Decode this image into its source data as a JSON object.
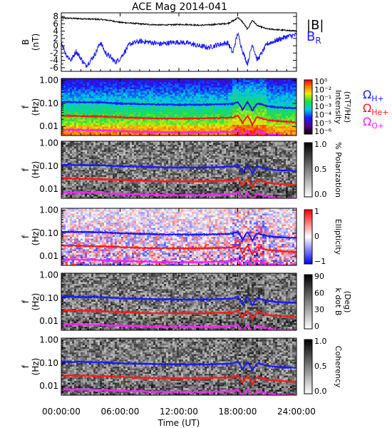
{
  "title": "ACE Mag 2014-041",
  "colors": {
    "B_total": "#000000",
    "B_R": "#1a1aff",
    "omega_H": "#1a1aff",
    "omega_He": "#ff1a1a",
    "omega_O": "#ff22ff"
  },
  "chart_data": {
    "type": "line",
    "title": "ACE Mag 2014-041",
    "xlabel": "Time (UT)",
    "xlim": [
      0,
      24
    ],
    "xtick_labels": [
      "00:00:00",
      "06:00:00",
      "12:00:00",
      "18:00:00",
      "24:00:00"
    ],
    "panels": [
      {
        "id": "bfield",
        "ylabel": "B",
        "yunit": "(nT)",
        "ylim": [
          -7,
          9
        ],
        "yticks": [
          "8",
          "6",
          "4",
          "2",
          "0",
          "-2",
          "-4",
          "-6"
        ],
        "legend": [
          "|B|",
          "B_R"
        ],
        "legend_display": {
          "b_total": "|B|",
          "b_r_main": "B",
          "b_r_sub": "R"
        },
        "series": [
          {
            "name": "|B|",
            "color": "#000000",
            "x": [
              0,
              1,
              2,
              3,
              4,
              5,
              6,
              7,
              8,
              9,
              10,
              11,
              12,
              13,
              14,
              15,
              16,
              17,
              17.8,
              18,
              18.5,
              19,
              19.5,
              20,
              21,
              22,
              23,
              24
            ],
            "y": [
              7.6,
              7.5,
              7.4,
              7.3,
              7.2,
              6.9,
              6.4,
              6.2,
              6.0,
              5.8,
              5.7,
              5.7,
              5.8,
              5.8,
              5.6,
              5.7,
              5.9,
              6.1,
              7.2,
              7.8,
              6.5,
              4.5,
              7.0,
              5.5,
              4.6,
              4.4,
              4.2,
              4.0
            ]
          },
          {
            "name": "B_R",
            "color": "#1a1aff",
            "x": [
              0,
              0.5,
              1,
              1.5,
              2,
              2.5,
              3,
              3.5,
              4,
              4.5,
              5,
              5.5,
              6,
              7,
              8,
              9,
              10,
              11,
              12,
              13,
              14,
              15,
              16,
              17,
              17.5,
              18,
              18.5,
              19,
              19.5,
              20,
              21,
              22,
              23,
              24
            ],
            "y": [
              1.0,
              -2.5,
              -4.0,
              -1.5,
              -3.5,
              -5.5,
              -4.0,
              -2.0,
              1.0,
              -2.0,
              -3.0,
              -4.5,
              -3.5,
              0.5,
              1.2,
              1.0,
              0.5,
              0.8,
              1.0,
              0.7,
              0.0,
              -0.5,
              0.3,
              0.8,
              -2.0,
              3.5,
              -1.5,
              -5.0,
              0.5,
              -4.0,
              0.5,
              1.5,
              2.5,
              3.0
            ]
          }
        ]
      },
      {
        "id": "intensity",
        "ylabel": "f",
        "yunit": "(Hz)",
        "yscale": "log",
        "ylim": [
          0.004,
          1.2
        ],
        "yticks": [
          "1.00",
          "0.10",
          "0.01"
        ],
        "colorbar_label": "Intensity",
        "colorbar_unit": "(nT²/Hz)",
        "colorbar_ticks": [
          "10⁰",
          "10⁻²",
          "10⁻¹",
          "10⁻³",
          "10⁻⁴",
          "10⁻⁵",
          "10⁻⁶"
        ]
      },
      {
        "id": "polarization",
        "ylabel": "f",
        "yunit": "(Hz)",
        "yscale": "log",
        "yticks": [
          "1.00",
          "0.10",
          "0.01"
        ],
        "colorbar_label": "% Polarization",
        "colorbar_ticks": [
          "1.0",
          "0.5",
          "0.0"
        ]
      },
      {
        "id": "ellipticity",
        "ylabel": "f",
        "yunit": "(Hz)",
        "yscale": "log",
        "yticks": [
          "1.00",
          "0.10",
          "0.01"
        ],
        "colorbar_label": "Ellipticity",
        "colorbar_ticks": [
          "1",
          "0",
          "−1"
        ]
      },
      {
        "id": "kdotb",
        "ylabel": "f",
        "yunit": "(Hz)",
        "yscale": "log",
        "yticks": [
          "1.00",
          "0.10",
          "0.01"
        ],
        "colorbar_label": "k dot B",
        "colorbar_unit": "(Deg)",
        "colorbar_ticks": [
          "90",
          "60",
          "30",
          "0"
        ]
      },
      {
        "id": "coherency",
        "ylabel": "f",
        "yunit": "(Hz)",
        "yscale": "log",
        "yticks": [
          "1.00",
          "0.10",
          "0.01"
        ],
        "colorbar_label": "Coherency",
        "colorbar_ticks": [
          "1.0",
          "0.5",
          "0.0"
        ]
      }
    ],
    "gyrofrequency_legend": [
      {
        "name": "ΩH+",
        "main": "Ω",
        "sub": "H+",
        "color": "#1a1aff"
      },
      {
        "name": "ΩHe+",
        "main": "Ω",
        "sub": "He+",
        "color": "#ff1a1a"
      },
      {
        "name": "ΩO+",
        "main": "Ω",
        "sub": "O+",
        "color": "#ff22ff"
      }
    ],
    "gyrofrequency_hz": {
      "x": [
        0,
        2,
        4,
        6,
        8,
        10,
        12,
        14,
        16,
        17.5,
        18,
        18.5,
        19,
        19.5,
        20,
        21,
        22,
        23,
        24
      ],
      "H+": [
        0.115,
        0.112,
        0.11,
        0.098,
        0.094,
        0.089,
        0.087,
        0.087,
        0.09,
        0.095,
        0.115,
        0.05,
        0.11,
        0.045,
        0.1,
        0.075,
        0.067,
        0.064,
        0.062
      ],
      "He+": [
        0.029,
        0.028,
        0.027,
        0.025,
        0.023,
        0.022,
        0.022,
        0.022,
        0.023,
        0.024,
        0.029,
        0.013,
        0.028,
        0.011,
        0.025,
        0.019,
        0.017,
        0.016,
        0.015
      ],
      "O+": [
        0.0072,
        0.007,
        0.0068,
        0.0062,
        0.0059,
        0.0056,
        0.0055,
        0.0055,
        0.0057,
        0.006,
        0.0072,
        0.0031,
        0.007,
        0.0028,
        0.0063,
        0.0047,
        0.0042,
        0.004,
        0.0039
      ]
    }
  }
}
